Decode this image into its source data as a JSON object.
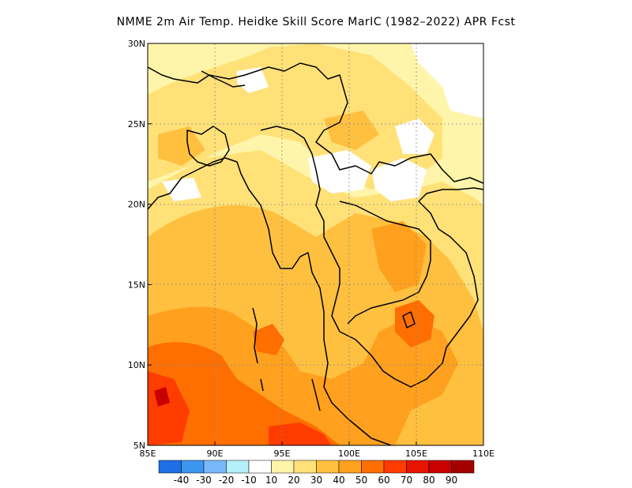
{
  "title": "NMME  2m Air Temp. Heidke Skill Score MarIC (1982–2022) APR Fcst",
  "map": {
    "extent": {
      "lon": [
        85,
        110
      ],
      "lat": [
        5,
        30
      ]
    },
    "xticks": [
      {
        "value": 85,
        "label": "85E"
      },
      {
        "value": 90,
        "label": "90E"
      },
      {
        "value": 95,
        "label": "95E"
      },
      {
        "value": 100,
        "label": "100E"
      },
      {
        "value": 105,
        "label": "105E"
      },
      {
        "value": 110,
        "label": "110E"
      }
    ],
    "yticks": [
      {
        "value": 5,
        "label": "5N"
      },
      {
        "value": 10,
        "label": "10N"
      },
      {
        "value": 15,
        "label": "15N"
      },
      {
        "value": 20,
        "label": "20N"
      },
      {
        "value": 25,
        "label": "25N"
      },
      {
        "value": 30,
        "label": "30N"
      }
    ],
    "grid": "dotted"
  },
  "colorbar": {
    "colors": [
      "#1e6ee6",
      "#3c96f0",
      "#78b9fa",
      "#b4f0fa",
      "#ffffff",
      "#fff5aa",
      "#ffe178",
      "#ffc040",
      "#ffa01e",
      "#ff6e00",
      "#ff3c00",
      "#e61400",
      "#c80000",
      "#a50000"
    ],
    "labels": [
      "-40",
      "-30",
      "-20",
      "-10",
      "10",
      "20",
      "30",
      "40",
      "50",
      "60",
      "70",
      "80",
      "90"
    ]
  }
}
